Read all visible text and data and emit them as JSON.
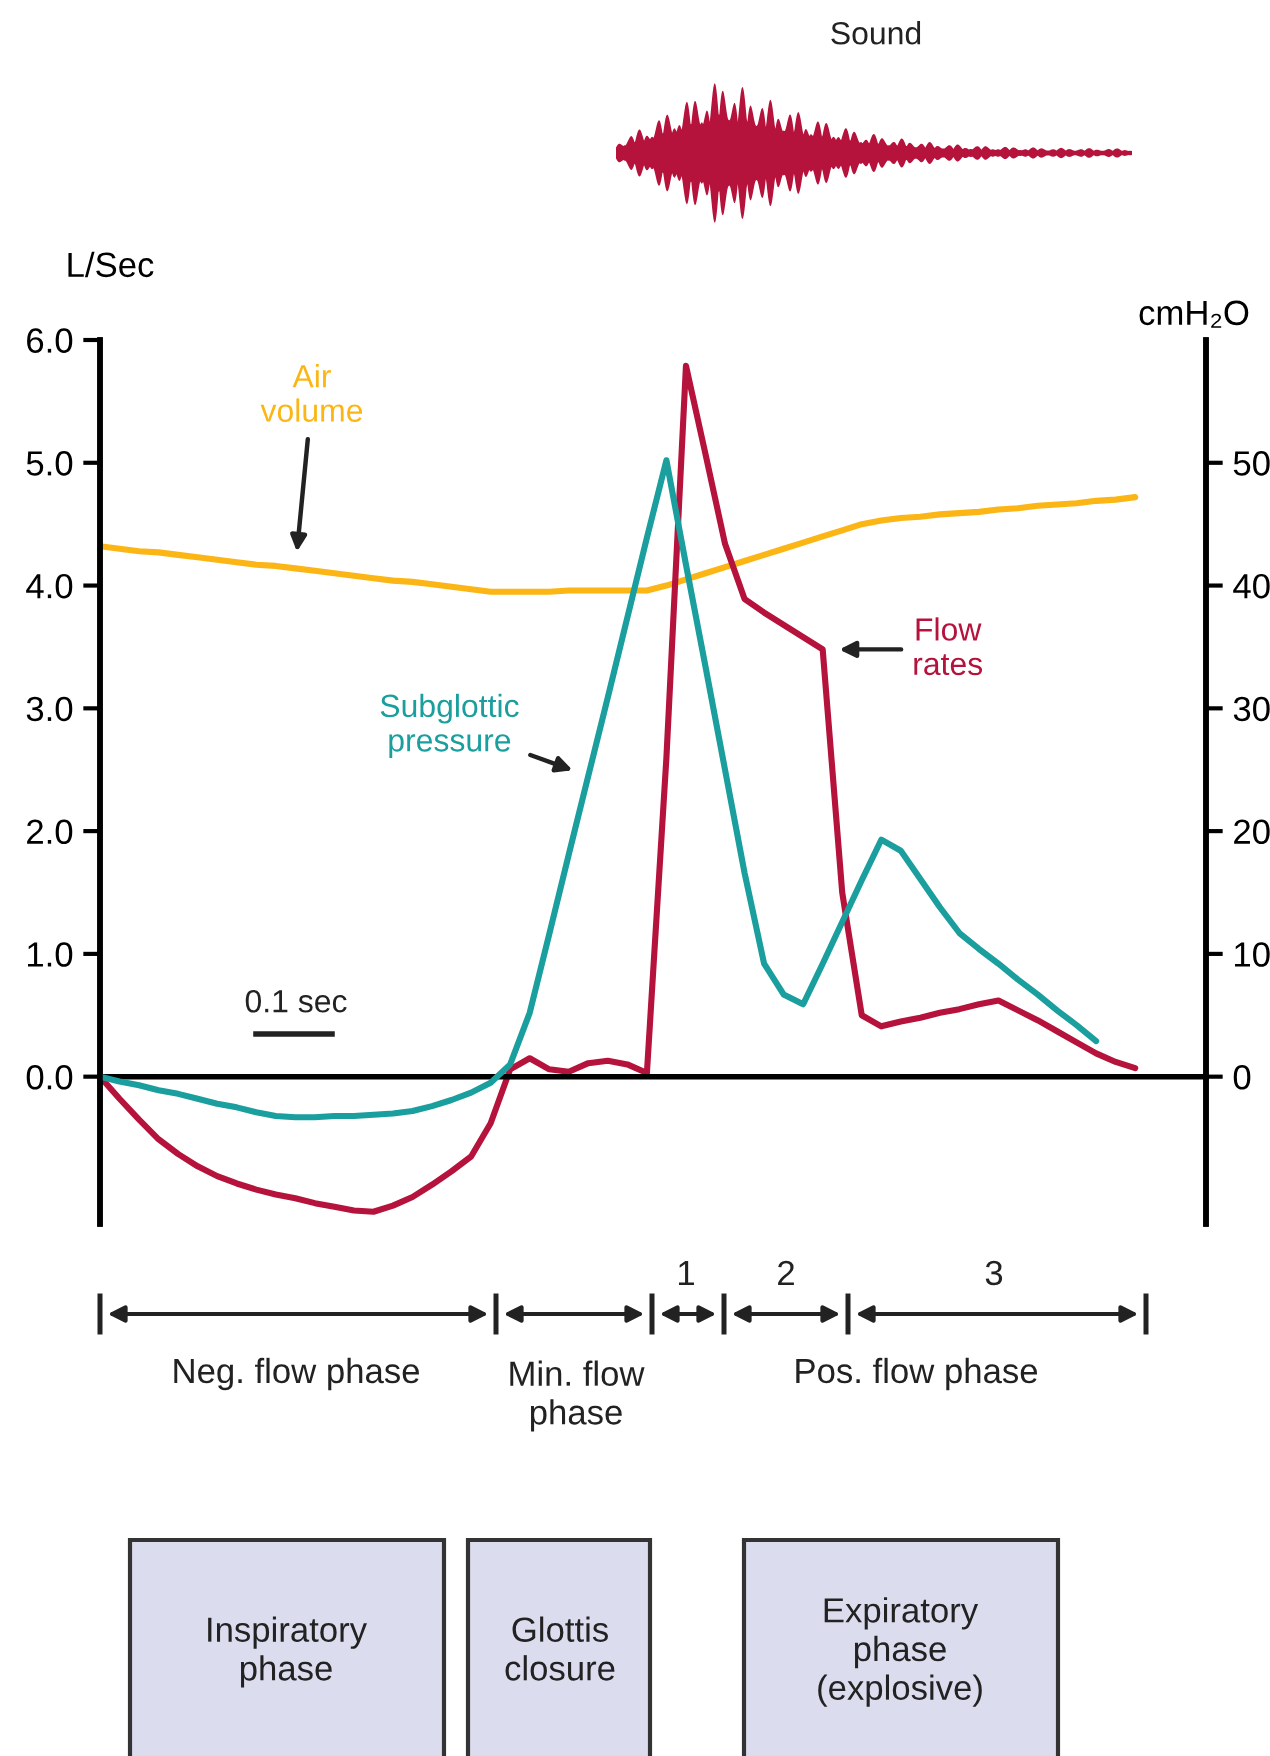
{
  "chart_data": {
    "type": "line",
    "title": "Sound",
    "ylabel": "L/Sec",
    "y2label": "cmH₂O",
    "categories": [
      null,
      null,
      null,
      null,
      null,
      null,
      null,
      null,
      null,
      null,
      null,
      null,
      null,
      null,
      null,
      null,
      null,
      null,
      null,
      null,
      null,
      null,
      null,
      null,
      null,
      null,
      null,
      null,
      null,
      null,
      null,
      null,
      null,
      null,
      null,
      null,
      null,
      null,
      null,
      null,
      null,
      null,
      null,
      null,
      null,
      null,
      null,
      null,
      null,
      null,
      null,
      null,
      null,
      null
    ],
    "series": [
      {
        "name": "Air\nvolume",
        "color": "#fbb615",
        "values": [
          4.32,
          4.3,
          4.28,
          4.27,
          4.25,
          4.23,
          4.21,
          4.19,
          4.17,
          4.16,
          4.14,
          4.12,
          4.1,
          4.08,
          4.06,
          4.04,
          4.03,
          4.01,
          3.99,
          3.97,
          3.95,
          3.95,
          3.95,
          3.95,
          3.96,
          3.96,
          3.96,
          3.96,
          3.96,
          4.0,
          4.05,
          4.1,
          4.15,
          4.2,
          4.25,
          4.3,
          4.35,
          4.4,
          4.45,
          4.5,
          4.53,
          4.55,
          4.56,
          4.58,
          4.59,
          4.6,
          4.62,
          4.63,
          4.65,
          4.66,
          4.67,
          4.69,
          4.7,
          4.72
        ]
      },
      {
        "name": "Subglottic\npressure",
        "color": "#1a9e9e",
        "axis": "y2",
        "values": [
          0,
          -0.4,
          -0.7,
          -1.1,
          -1.4,
          -1.8,
          -2.2,
          -2.5,
          -2.9,
          -3.2,
          -3.3,
          -3.3,
          -3.2,
          -3.2,
          -3.1,
          -3.0,
          -2.8,
          -2.4,
          -1.9,
          -1.3,
          -0.5,
          1.0,
          5.2,
          11.6,
          18.1,
          24.5,
          30.9,
          37.4,
          43.9,
          50.2,
          41.7,
          33.4,
          25.0,
          16.6,
          9.2,
          6.7,
          5.9,
          9.2,
          12.6,
          16.0,
          19.3,
          18.4,
          16.1,
          13.8,
          11.7,
          10.4,
          9.2,
          7.9,
          6.7,
          5.4,
          4.2,
          2.9,
          null,
          null
        ]
      },
      {
        "name": "Flow\nrates",
        "color": "#b5123c",
        "values": [
          0,
          -0.18,
          -0.35,
          -0.51,
          -0.63,
          -0.73,
          -0.81,
          -0.87,
          -0.92,
          -0.96,
          -0.99,
          -1.03,
          -1.06,
          -1.09,
          -1.1,
          -1.05,
          -0.98,
          -0.88,
          -0.77,
          -0.65,
          -0.38,
          0.06,
          0.15,
          0.06,
          0.04,
          0.11,
          0.13,
          0.1,
          0.03,
          2.6,
          5.79,
          5.07,
          4.34,
          3.89,
          3.78,
          3.68,
          3.58,
          3.48,
          1.5,
          0.5,
          0.41,
          0.45,
          0.48,
          0.52,
          0.55,
          0.59,
          0.62,
          0.54,
          0.46,
          0.37,
          0.28,
          0.19,
          0.12,
          0.07
        ]
      }
    ],
    "ylim": [
      -1.2,
      6.0
    ],
    "yticks": [
      {
        "value": 0,
        "label": "0.0"
      },
      {
        "value": 1,
        "label": "1.0"
      },
      {
        "value": 2,
        "label": "2.0"
      },
      {
        "value": 3,
        "label": "3.0"
      },
      {
        "value": 4,
        "label": "4.0"
      },
      {
        "value": 5,
        "label": "5.0"
      },
      {
        "value": 6,
        "label": "6.0"
      }
    ],
    "y2lim": [
      -12,
      60
    ],
    "y2ticks": [
      0,
      10,
      20,
      30,
      40,
      50
    ],
    "annotations": [
      "0.1 sec",
      "Neg. flow phase",
      "Min. flow\nphase",
      "1",
      "2",
      "Pos. flow phase",
      "3",
      "Inspiratory\nphase",
      "Glottis\nclosure",
      "Expiratory\nphase\n(explosive)"
    ]
  }
}
